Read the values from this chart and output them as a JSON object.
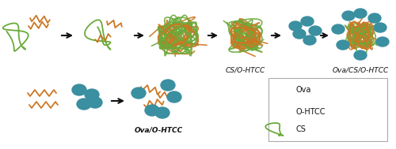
{
  "bg_color": "#ffffff",
  "ova_color": "#3a8fa0",
  "htcc_color": "#cc7722",
  "cs_color": "#6aaa3a",
  "arrow_color": "#111111",
  "text_color": "#111111",
  "label_cs_htcc": "CS/O-HTCC",
  "label_ova_cs_htcc": "Ova/CS/O-HTCC",
  "label_ova_htcc": "Ova/O-HTCC",
  "legend_ova": "Ova",
  "legend_htcc": "O-HTCC",
  "legend_cs": "CS",
  "figsize": [
    5.0,
    1.89
  ],
  "dpi": 100
}
